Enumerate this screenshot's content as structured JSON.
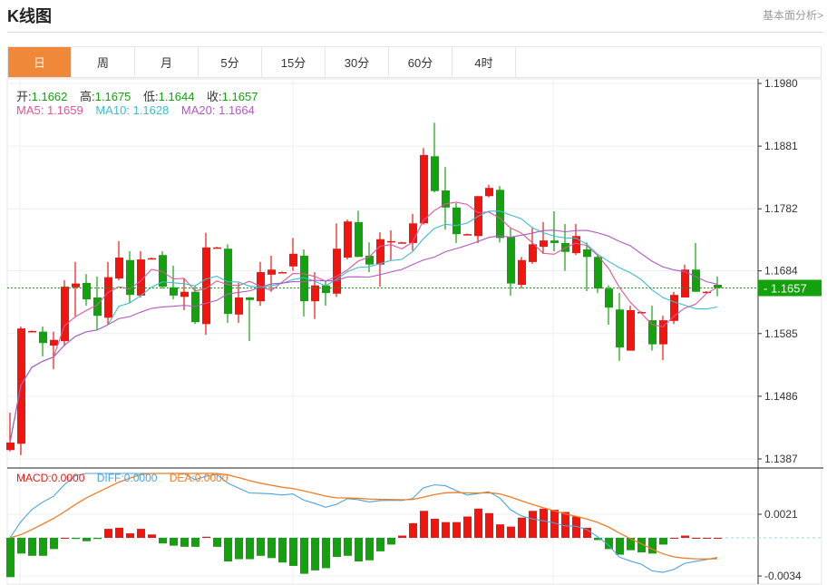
{
  "header": {
    "title": "K线图",
    "more_link": "基本面分析>"
  },
  "tabs": [
    {
      "label": "日",
      "active": true
    },
    {
      "label": "周"
    },
    {
      "label": "月"
    },
    {
      "label": "5分"
    },
    {
      "label": "15分"
    },
    {
      "label": "30分"
    },
    {
      "label": "60分"
    },
    {
      "label": "4时"
    }
  ],
  "ohlc": {
    "open_label": "开:",
    "open": "1.1662",
    "high_label": "高:",
    "high": "1.1675",
    "low_label": "低:",
    "low": "1.1644",
    "close_label": "收:",
    "close": "1.1657"
  },
  "ma": {
    "ma5": "MA5: 1.1659",
    "ma10": "MA10: 1.1628",
    "ma20": "MA20: 1.1664"
  },
  "macd_legend": {
    "macd": "MACD:0.0000",
    "diff": "DIFF:0.0000",
    "dea": "DEA:0.0000"
  },
  "current_price": "1.1657",
  "colors": {
    "up": "#f0150f",
    "down": "#13a10e",
    "ma5": "#e0559a",
    "ma10": "#3bbcd0",
    "ma20": "#b05ac0",
    "diff": "#4aa3e0",
    "dea": "#f07d22",
    "active_tab": "#f0883a"
  },
  "chart_data": {
    "type": "candlestick",
    "price_axis": {
      "range": [
        1.1387,
        1.198
      ],
      "ticks": [
        "1.1980",
        "1.1881",
        "1.1782",
        "1.1684",
        "1.1585",
        "1.1486",
        "1.1387"
      ]
    },
    "macd_axis": {
      "range": [
        -0.0034,
        0.0021
      ],
      "ticks": [
        "0.0021",
        "-0.0034"
      ]
    },
    "candles_ohlc": [
      [
        1.1401,
        1.146,
        1.1399,
        1.1413
      ],
      [
        1.1411,
        1.1596,
        1.1393,
        1.1593
      ],
      [
        1.1589,
        1.159,
        1.1588,
        1.1589
      ],
      [
        1.1588,
        1.1596,
        1.1549,
        1.157
      ],
      [
        1.1566,
        1.1588,
        1.1529,
        1.1575
      ],
      [
        1.1573,
        1.1669,
        1.1565,
        1.1659
      ],
      [
        1.1658,
        1.1698,
        1.1612,
        1.1664
      ],
      [
        1.1665,
        1.1679,
        1.1629,
        1.1639
      ],
      [
        1.1642,
        1.1675,
        1.159,
        1.1613
      ],
      [
        1.161,
        1.1698,
        1.1599,
        1.1674
      ],
      [
        1.1672,
        1.1731,
        1.1669,
        1.1705
      ],
      [
        1.1701,
        1.1715,
        1.1633,
        1.1646
      ],
      [
        1.1645,
        1.1715,
        1.1642,
        1.1702
      ],
      [
        1.1704,
        1.1705,
        1.1703,
        1.1704
      ],
      [
        1.1709,
        1.1715,
        1.1656,
        1.1659
      ],
      [
        1.1658,
        1.1692,
        1.1639,
        1.1645
      ],
      [
        1.1643,
        1.1672,
        1.1622,
        1.1651
      ],
      [
        1.1651,
        1.1661,
        1.16,
        1.1603
      ],
      [
        1.16,
        1.1744,
        1.1583,
        1.1721
      ],
      [
        1.1721,
        1.1722,
        1.172,
        1.1721
      ],
      [
        1.1719,
        1.1726,
        1.1602,
        1.1616
      ],
      [
        1.1615,
        1.1665,
        1.1602,
        1.1642
      ],
      [
        1.1642,
        1.1643,
        1.1573,
        1.1638
      ],
      [
        1.1636,
        1.1698,
        1.1629,
        1.1682
      ],
      [
        1.1678,
        1.1708,
        1.1651,
        1.1686
      ],
      [
        1.1682,
        1.1683,
        1.1681,
        1.1682
      ],
      [
        1.1691,
        1.1736,
        1.1684,
        1.1711
      ],
      [
        1.1708,
        1.1718,
        1.1612,
        1.1636
      ],
      [
        1.1636,
        1.1682,
        1.1608,
        1.1661
      ],
      [
        1.1661,
        1.1668,
        1.1629,
        1.1649
      ],
      [
        1.1648,
        1.1759,
        1.1643,
        1.1719
      ],
      [
        1.1705,
        1.1765,
        1.1702,
        1.1762
      ],
      [
        1.1761,
        1.1779,
        1.1706,
        1.1706
      ],
      [
        1.1708,
        1.1729,
        1.1682,
        1.1694
      ],
      [
        1.1694,
        1.1745,
        1.1659,
        1.1734
      ],
      [
        1.1731,
        1.1748,
        1.1701,
        1.1731
      ],
      [
        1.1729,
        1.173,
        1.1728,
        1.1729
      ],
      [
        1.1728,
        1.1774,
        1.1716,
        1.1759
      ],
      [
        1.1759,
        1.1878,
        1.1757,
        1.1867
      ],
      [
        1.1865,
        1.1918,
        1.1808,
        1.181
      ],
      [
        1.1811,
        1.1848,
        1.1749,
        1.1784
      ],
      [
        1.1784,
        1.1791,
        1.1728,
        1.1742
      ],
      [
        1.1742,
        1.1743,
        1.1741,
        1.1742
      ],
      [
        1.1739,
        1.1802,
        1.1728,
        1.1802
      ],
      [
        1.1802,
        1.182,
        1.18,
        1.1815
      ],
      [
        1.1812,
        1.1818,
        1.1729,
        1.1736
      ],
      [
        1.1738,
        1.1751,
        1.1645,
        1.1664
      ],
      [
        1.1662,
        1.1706,
        1.1656,
        1.1701
      ],
      [
        1.1698,
        1.1752,
        1.1695,
        1.1726
      ],
      [
        1.1722,
        1.1761,
        1.1711,
        1.1732
      ],
      [
        1.1732,
        1.1778,
        1.1715,
        1.1728
      ],
      [
        1.1728,
        1.1758,
        1.1684,
        1.1714
      ],
      [
        1.1712,
        1.1758,
        1.1709,
        1.1739
      ],
      [
        1.1718,
        1.1729,
        1.1652,
        1.1706
      ],
      [
        1.1706,
        1.1711,
        1.1649,
        1.1656
      ],
      [
        1.1656,
        1.1661,
        1.1599,
        1.1626
      ],
      [
        1.1623,
        1.1649,
        1.1542,
        1.1563
      ],
      [
        1.1558,
        1.1629,
        1.1558,
        1.1622
      ],
      [
        1.1619,
        1.162,
        1.1618,
        1.1619
      ],
      [
        1.1606,
        1.1629,
        1.1558,
        1.1568
      ],
      [
        1.1568,
        1.1613,
        1.1543,
        1.1606
      ],
      [
        1.1605,
        1.1651,
        1.16,
        1.1646
      ],
      [
        1.1642,
        1.1694,
        1.1642,
        1.1686
      ],
      [
        1.1686,
        1.1728,
        1.1651,
        1.1651
      ],
      [
        1.1651,
        1.1652,
        1.165,
        1.1651
      ],
      [
        1.1662,
        1.1675,
        1.1644,
        1.1657
      ]
    ],
    "macd_histogram": [
      -0.0035,
      -0.0014,
      -0.0016,
      -0.0016,
      -0.001,
      0.0,
      -0.0001,
      -0.0003,
      -0.0001,
      0.0008,
      0.0009,
      0.0004,
      0.0008,
      0.0003,
      -0.0005,
      -0.0007,
      -0.0008,
      -0.0008,
      0.0001,
      -0.0008,
      -0.0021,
      -0.0019,
      -0.0019,
      -0.0016,
      -0.0018,
      -0.0022,
      -0.0025,
      -0.0032,
      -0.0029,
      -0.0027,
      -0.0017,
      -0.0016,
      -0.0021,
      -0.002,
      -0.0012,
      -0.0006,
      0.0002,
      0.0013,
      0.0024,
      0.0017,
      0.0014,
      0.0014,
      0.0019,
      0.0026,
      0.0022,
      0.0012,
      0.001,
      0.0018,
      0.0024,
      0.0026,
      0.0025,
      0.0023,
      0.0019,
      0.0009,
      -0.0002,
      -0.001,
      -0.0015,
      -0.0011,
      -0.0013,
      -0.0014,
      -0.0006,
      0.0,
      0.0002,
      0.0,
      0.0,
      0.0
    ],
    "grid": true
  }
}
